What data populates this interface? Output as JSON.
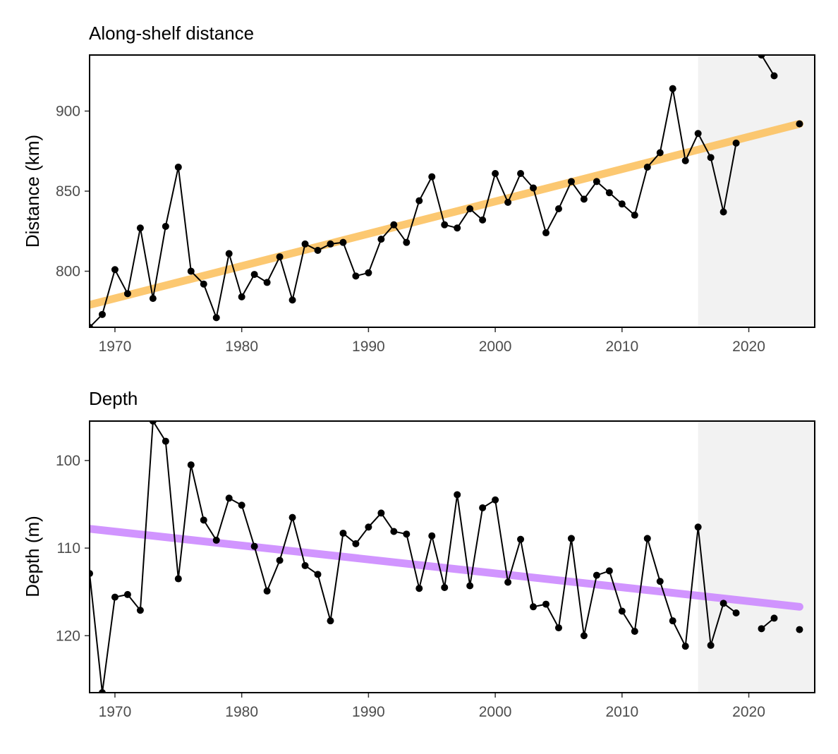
{
  "chart_data": [
    {
      "type": "line",
      "title": "Along-shelf distance",
      "xlabel": "",
      "ylabel": "Distance (km)",
      "xlim": [
        1968,
        2025.2
      ],
      "ylim": [
        765,
        935
      ],
      "y_reversed": false,
      "xticks": [
        1970,
        1980,
        1990,
        2000,
        2010,
        2020
      ],
      "yticks": [
        800,
        850,
        900
      ],
      "grid": false,
      "shaded_x_range": [
        2016,
        2025.2
      ],
      "shade_color": "#f2f2f2",
      "trend": {
        "x": [
          1968,
          2024
        ],
        "y": [
          779,
          892
        ],
        "color": "#fcc262"
      },
      "series_color": "#000000",
      "x": [
        1968,
        1969,
        1970,
        1971,
        1972,
        1973,
        1974,
        1975,
        1976,
        1977,
        1978,
        1979,
        1980,
        1981,
        1982,
        1983,
        1984,
        1985,
        1986,
        1987,
        1988,
        1989,
        1990,
        1991,
        1992,
        1993,
        1994,
        1995,
        1996,
        1997,
        1998,
        1999,
        2000,
        2001,
        2002,
        2003,
        2004,
        2005,
        2006,
        2007,
        2008,
        2009,
        2010,
        2011,
        2012,
        2013,
        2014,
        2015,
        2016,
        2017,
        2018,
        2019,
        2020,
        2021,
        2022,
        2023,
        2024
      ],
      "values": [
        765,
        773,
        801,
        786,
        827,
        783,
        828,
        865,
        800,
        792,
        771,
        811,
        784,
        798,
        793,
        809,
        782,
        817,
        813,
        817,
        818,
        797,
        799,
        820,
        829,
        818,
        844,
        859,
        829,
        827,
        839,
        832,
        861,
        843,
        861,
        852,
        824,
        839,
        856,
        845,
        856,
        849,
        842,
        835,
        865,
        874,
        914,
        869,
        886,
        871,
        837,
        880,
        null,
        935,
        922,
        null,
        892
      ]
    },
    {
      "type": "line",
      "title": "Depth",
      "xlabel": "",
      "ylabel": "Depth (m)",
      "xlim": [
        1968,
        2025.2
      ],
      "ylim": [
        95.5,
        126.5
      ],
      "y_reversed": true,
      "xticks": [
        1970,
        1980,
        1990,
        2000,
        2010,
        2020
      ],
      "yticks": [
        100,
        110,
        120
      ],
      "grid": false,
      "shaded_x_range": [
        2016,
        2025.2
      ],
      "shade_color": "#f2f2f2",
      "trend": {
        "x": [
          1968,
          2024
        ],
        "y": [
          107.8,
          116.7
        ],
        "color": "#cc8aff"
      },
      "series_color": "#000000",
      "x": [
        1968,
        1969,
        1970,
        1971,
        1972,
        1973,
        1974,
        1975,
        1976,
        1977,
        1978,
        1979,
        1980,
        1981,
        1982,
        1983,
        1984,
        1985,
        1986,
        1987,
        1988,
        1989,
        1990,
        1991,
        1992,
        1993,
        1994,
        1995,
        1996,
        1997,
        1998,
        1999,
        2000,
        2001,
        2002,
        2003,
        2004,
        2005,
        2006,
        2007,
        2008,
        2009,
        2010,
        2011,
        2012,
        2013,
        2014,
        2015,
        2016,
        2017,
        2018,
        2019,
        2020,
        2021,
        2022,
        2023,
        2024
      ],
      "values": [
        112.9,
        126.5,
        115.6,
        115.3,
        117.1,
        95.5,
        97.8,
        113.5,
        100.5,
        106.8,
        109.1,
        104.3,
        105.1,
        109.8,
        114.9,
        111.4,
        106.5,
        112.0,
        113.0,
        118.3,
        108.3,
        109.5,
        107.6,
        106.0,
        108.1,
        108.4,
        114.6,
        108.6,
        114.5,
        103.9,
        114.3,
        105.4,
        104.5,
        113.9,
        109.0,
        116.7,
        116.4,
        119.1,
        108.9,
        120.0,
        113.1,
        112.6,
        117.2,
        119.5,
        108.9,
        113.8,
        118.3,
        121.2,
        107.6,
        121.1,
        116.3,
        117.4,
        null,
        119.2,
        118.0,
        null,
        119.3
      ]
    }
  ]
}
